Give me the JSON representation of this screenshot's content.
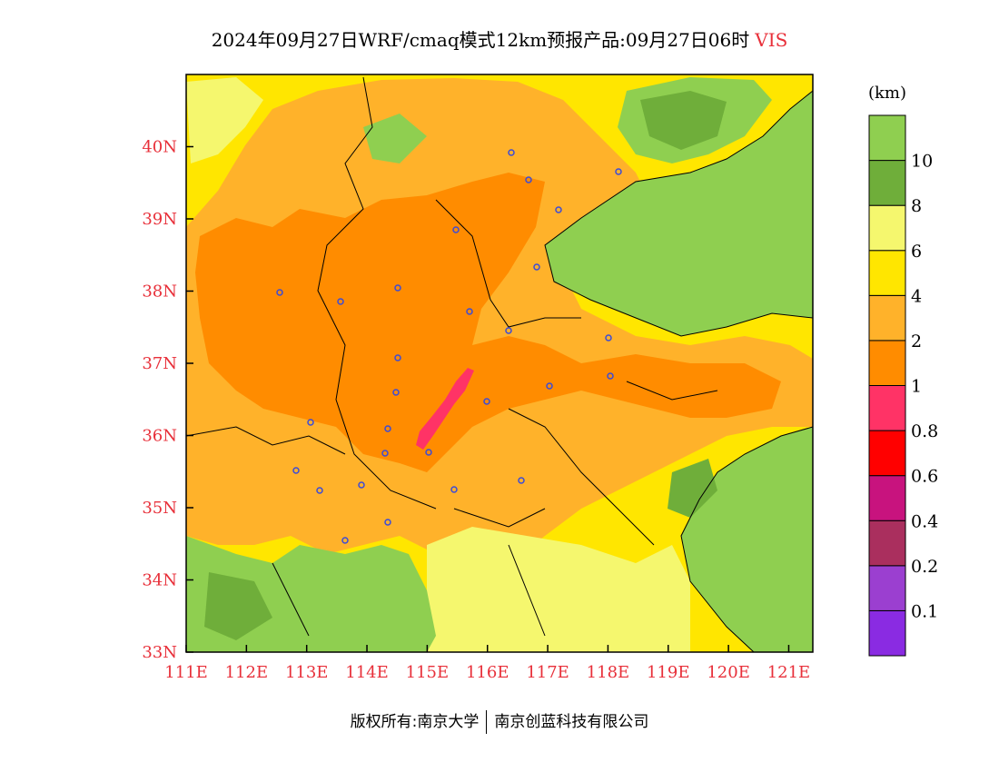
{
  "title": {
    "main": "2024年09月27日WRF/cmaq模式12km预报产品:09月27日06时",
    "variable": "VIS"
  },
  "map": {
    "lon_ticks": [
      "111E",
      "112E",
      "113E",
      "114E",
      "115E",
      "116E",
      "117E",
      "118E",
      "119E",
      "120E",
      "121E"
    ],
    "lat_ticks": [
      "33N",
      "34N",
      "35N",
      "36N",
      "37N",
      "38N",
      "39N",
      "40N"
    ],
    "lon_range": [
      111,
      121.4
    ],
    "lat_range": [
      33,
      41
    ]
  },
  "colorbar": {
    "unit": "(km)",
    "labels": [
      "0.1",
      "0.2",
      "0.4",
      "0.6",
      "0.8",
      "1",
      "2",
      "4",
      "6",
      "8",
      "10"
    ],
    "colors": [
      "#8a2be2",
      "#9b3fd0",
      "#aa2f5e",
      "#c8137e",
      "#ff0000",
      "#ff3366",
      "#ff8c00",
      "#ffb22a",
      "#ffe600",
      "#f5f76e",
      "#6fae3a",
      "#8fcf50"
    ]
  },
  "legend_colors": {
    "sea": "#8fcf50",
    "high_vis": "#6fae3a",
    "vis_6_8": "#f5f76e",
    "vis_4_6": "#ffe600",
    "vis_2_4": "#ffb22a",
    "vis_1_2": "#ff8c00",
    "vis_08_1": "#ff3366"
  },
  "copyright": {
    "left": "版权所有:南京大学",
    "right": "南京创蓝科技有限公司"
  }
}
